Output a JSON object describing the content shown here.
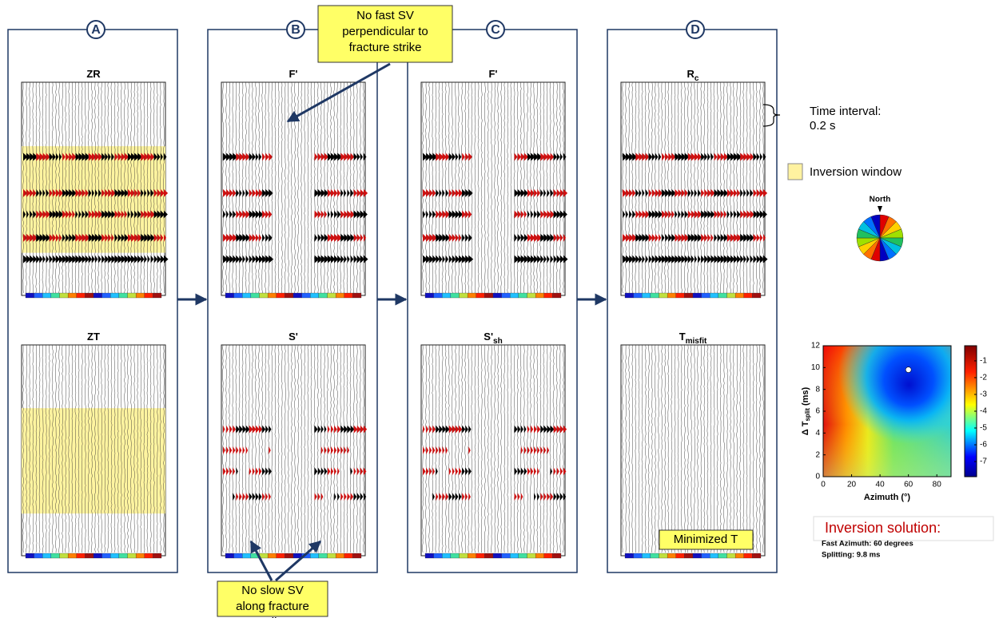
{
  "panels": [
    {
      "letter": "A",
      "plots": [
        {
          "title": "ZR"
        },
        {
          "title": "ZT"
        }
      ]
    },
    {
      "letter": "B",
      "plots": [
        {
          "title": "F'"
        },
        {
          "title": "S'"
        }
      ]
    },
    {
      "letter": "C",
      "plots": [
        {
          "title": "F'"
        },
        {
          "title": "S'",
          "subscript": "sh"
        }
      ]
    },
    {
      "letter": "D",
      "plots": [
        {
          "title": "R",
          "subscript": "c"
        },
        {
          "title": "T",
          "subscript": "misfit"
        }
      ]
    }
  ],
  "annotations": {
    "top": "No fast SV perpendicular to fracture strike",
    "bottom": "No slow SV along fracture strike",
    "minimized": "Minimized T"
  },
  "legend": {
    "time_interval": [
      "Time interval:",
      "0.2 s"
    ],
    "window": "Inversion window",
    "north": "North"
  },
  "chart_data": {
    "type": "heatmap",
    "xlabel": "Azimuth (°)",
    "ylabel": "Δ T",
    "ylabel_subscript": "split",
    "ylabel_unit": "(ms)",
    "xlim": [
      0,
      90
    ],
    "xticks": [
      0,
      20,
      40,
      60,
      80
    ],
    "ylim": [
      0,
      12
    ],
    "yticks": [
      0,
      2,
      4,
      6,
      8,
      10,
      12
    ],
    "clim": [
      -7.9,
      -0.1
    ],
    "cticks": [
      -1,
      -2,
      -3,
      -4,
      -5,
      -6,
      -7
    ],
    "solution": {
      "x": 60,
      "y": 9.8,
      "color": "#ffffff"
    }
  },
  "solution": {
    "title": "Inversion solution:",
    "lines": [
      "Fast Azimuth: 60 degrees",
      "Splitting: 9.8 ms"
    ]
  }
}
